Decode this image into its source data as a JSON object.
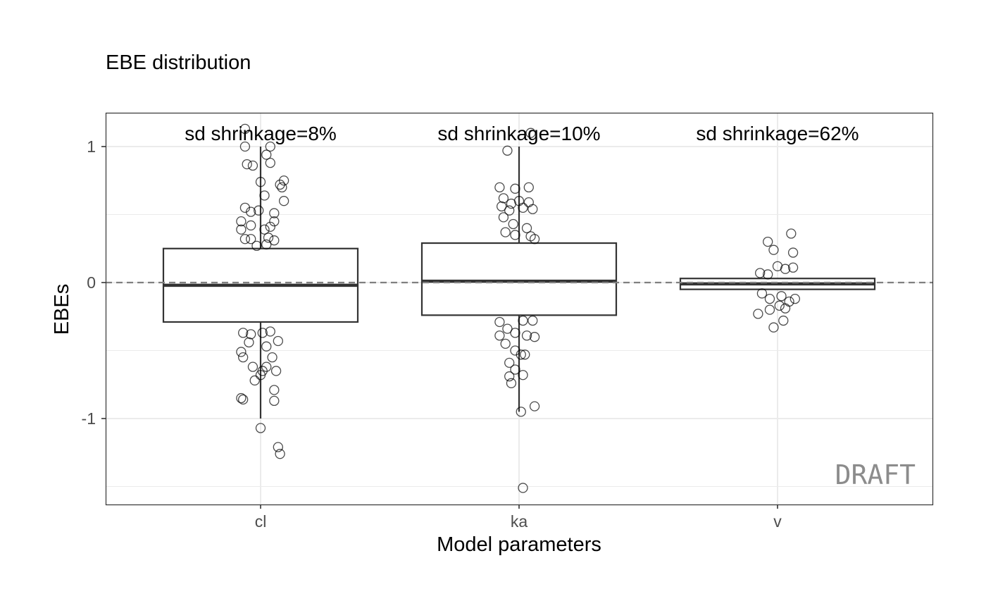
{
  "chart_data": {
    "type": "box",
    "title": "EBE distribution",
    "xlabel": "Model parameters",
    "ylabel": "EBEs",
    "categories": [
      "cl",
      "ka",
      "v"
    ],
    "ylim": [
      -1.62,
      1.25
    ],
    "yticks": [
      -1,
      0,
      1
    ],
    "ytick_labels": [
      "-1",
      "0",
      "1"
    ],
    "grid": true,
    "reference_line": {
      "y": 0,
      "style": "dashed",
      "color": "#808080"
    },
    "watermark": "DRAFT",
    "watermark_color": "#8c8c8c",
    "annotations": [
      "sd shrinkage=8%",
      "sd shrinkage=10%",
      "sd shrinkage=62%"
    ],
    "boxes": [
      {
        "category": "cl",
        "q1": -0.29,
        "median": -0.02,
        "q3": 0.25,
        "whisker_low": -1.0,
        "whisker_high": 1.0
      },
      {
        "category": "ka",
        "q1": -0.24,
        "median": 0.01,
        "q3": 0.29,
        "whisker_low": -0.95,
        "whisker_high": 1.0
      },
      {
        "category": "v",
        "q1": -0.05,
        "median": -0.01,
        "q3": 0.03,
        "whisker_low": -0.05,
        "whisker_high": 0.03
      }
    ],
    "points": [
      {
        "category": "cl",
        "x_offset": -0.08,
        "y": 1.13
      },
      {
        "category": "cl",
        "x_offset": -0.08,
        "y": 1.0
      },
      {
        "category": "cl",
        "x_offset": 0.05,
        "y": 1.0
      },
      {
        "category": "cl",
        "x_offset": 0.03,
        "y": 0.94
      },
      {
        "category": "cl",
        "x_offset": -0.07,
        "y": 0.87
      },
      {
        "category": "cl",
        "x_offset": -0.04,
        "y": 0.86
      },
      {
        "category": "cl",
        "x_offset": 0.05,
        "y": 0.88
      },
      {
        "category": "cl",
        "x_offset": 0.0,
        "y": 0.74
      },
      {
        "category": "cl",
        "x_offset": 0.1,
        "y": 0.72
      },
      {
        "category": "cl",
        "x_offset": 0.11,
        "y": 0.7
      },
      {
        "category": "cl",
        "x_offset": 0.12,
        "y": 0.75
      },
      {
        "category": "cl",
        "x_offset": 0.02,
        "y": 0.64
      },
      {
        "category": "cl",
        "x_offset": 0.12,
        "y": 0.6
      },
      {
        "category": "cl",
        "x_offset": -0.08,
        "y": 0.55
      },
      {
        "category": "cl",
        "x_offset": -0.05,
        "y": 0.52
      },
      {
        "category": "cl",
        "x_offset": -0.01,
        "y": 0.53
      },
      {
        "category": "cl",
        "x_offset": 0.07,
        "y": 0.51
      },
      {
        "category": "cl",
        "x_offset": -0.1,
        "y": 0.45
      },
      {
        "category": "cl",
        "x_offset": -0.05,
        "y": 0.42
      },
      {
        "category": "cl",
        "x_offset": 0.05,
        "y": 0.41
      },
      {
        "category": "cl",
        "x_offset": 0.07,
        "y": 0.45
      },
      {
        "category": "cl",
        "x_offset": -0.1,
        "y": 0.39
      },
      {
        "category": "cl",
        "x_offset": 0.02,
        "y": 0.39
      },
      {
        "category": "cl",
        "x_offset": -0.08,
        "y": 0.32
      },
      {
        "category": "cl",
        "x_offset": -0.05,
        "y": 0.32
      },
      {
        "category": "cl",
        "x_offset": 0.04,
        "y": 0.33
      },
      {
        "category": "cl",
        "x_offset": 0.07,
        "y": 0.31
      },
      {
        "category": "cl",
        "x_offset": -0.02,
        "y": 0.27
      },
      {
        "category": "cl",
        "x_offset": 0.03,
        "y": 0.28
      },
      {
        "category": "cl",
        "x_offset": -0.09,
        "y": -0.37
      },
      {
        "category": "cl",
        "x_offset": -0.05,
        "y": -0.38
      },
      {
        "category": "cl",
        "x_offset": 0.01,
        "y": -0.37
      },
      {
        "category": "cl",
        "x_offset": 0.05,
        "y": -0.36
      },
      {
        "category": "cl",
        "x_offset": -0.06,
        "y": -0.44
      },
      {
        "category": "cl",
        "x_offset": 0.03,
        "y": -0.47
      },
      {
        "category": "cl",
        "x_offset": 0.09,
        "y": -0.43
      },
      {
        "category": "cl",
        "x_offset": -0.1,
        "y": -0.51
      },
      {
        "category": "cl",
        "x_offset": -0.09,
        "y": -0.55
      },
      {
        "category": "cl",
        "x_offset": 0.06,
        "y": -0.55
      },
      {
        "category": "cl",
        "x_offset": -0.04,
        "y": -0.62
      },
      {
        "category": "cl",
        "x_offset": 0.01,
        "y": -0.65
      },
      {
        "category": "cl",
        "x_offset": 0.03,
        "y": -0.62
      },
      {
        "category": "cl",
        "x_offset": 0.08,
        "y": -0.65
      },
      {
        "category": "cl",
        "x_offset": -0.03,
        "y": -0.72
      },
      {
        "category": "cl",
        "x_offset": 0.0,
        "y": -0.68
      },
      {
        "category": "cl",
        "x_offset": 0.07,
        "y": -0.79
      },
      {
        "category": "cl",
        "x_offset": -0.1,
        "y": -0.85
      },
      {
        "category": "cl",
        "x_offset": -0.09,
        "y": -0.86
      },
      {
        "category": "cl",
        "x_offset": 0.07,
        "y": -0.87
      },
      {
        "category": "cl",
        "x_offset": 0.0,
        "y": -1.07
      },
      {
        "category": "cl",
        "x_offset": 0.09,
        "y": -1.21
      },
      {
        "category": "cl",
        "x_offset": 0.1,
        "y": -1.26
      },
      {
        "category": "ka",
        "x_offset": 0.06,
        "y": 1.1
      },
      {
        "category": "ka",
        "x_offset": -0.06,
        "y": 0.97
      },
      {
        "category": "ka",
        "x_offset": -0.1,
        "y": 0.7
      },
      {
        "category": "ka",
        "x_offset": -0.02,
        "y": 0.69
      },
      {
        "category": "ka",
        "x_offset": 0.05,
        "y": 0.7
      },
      {
        "category": "ka",
        "x_offset": -0.08,
        "y": 0.62
      },
      {
        "category": "ka",
        "x_offset": -0.04,
        "y": 0.58
      },
      {
        "category": "ka",
        "x_offset": 0.0,
        "y": 0.6
      },
      {
        "category": "ka",
        "x_offset": 0.05,
        "y": 0.59
      },
      {
        "category": "ka",
        "x_offset": -0.09,
        "y": 0.56
      },
      {
        "category": "ka",
        "x_offset": -0.05,
        "y": 0.53
      },
      {
        "category": "ka",
        "x_offset": 0.02,
        "y": 0.55
      },
      {
        "category": "ka",
        "x_offset": 0.07,
        "y": 0.54
      },
      {
        "category": "ka",
        "x_offset": -0.08,
        "y": 0.48
      },
      {
        "category": "ka",
        "x_offset": -0.03,
        "y": 0.43
      },
      {
        "category": "ka",
        "x_offset": 0.04,
        "y": 0.4
      },
      {
        "category": "ka",
        "x_offset": -0.07,
        "y": 0.37
      },
      {
        "category": "ka",
        "x_offset": -0.02,
        "y": 0.35
      },
      {
        "category": "ka",
        "x_offset": 0.06,
        "y": 0.34
      },
      {
        "category": "ka",
        "x_offset": 0.08,
        "y": 0.32
      },
      {
        "category": "ka",
        "x_offset": -0.1,
        "y": -0.29
      },
      {
        "category": "ka",
        "x_offset": -0.06,
        "y": -0.34
      },
      {
        "category": "ka",
        "x_offset": 0.02,
        "y": -0.28
      },
      {
        "category": "ka",
        "x_offset": 0.07,
        "y": -0.28
      },
      {
        "category": "ka",
        "x_offset": -0.1,
        "y": -0.39
      },
      {
        "category": "ka",
        "x_offset": -0.02,
        "y": -0.37
      },
      {
        "category": "ka",
        "x_offset": 0.04,
        "y": -0.39
      },
      {
        "category": "ka",
        "x_offset": 0.08,
        "y": -0.4
      },
      {
        "category": "ka",
        "x_offset": -0.07,
        "y": -0.45
      },
      {
        "category": "ka",
        "x_offset": -0.02,
        "y": -0.5
      },
      {
        "category": "ka",
        "x_offset": 0.01,
        "y": -0.53
      },
      {
        "category": "ka",
        "x_offset": 0.03,
        "y": -0.53
      },
      {
        "category": "ka",
        "x_offset": -0.05,
        "y": -0.59
      },
      {
        "category": "ka",
        "x_offset": -0.02,
        "y": -0.64
      },
      {
        "category": "ka",
        "x_offset": 0.02,
        "y": -0.68
      },
      {
        "category": "ka",
        "x_offset": -0.05,
        "y": -0.69
      },
      {
        "category": "ka",
        "x_offset": -0.04,
        "y": -0.74
      },
      {
        "category": "ka",
        "x_offset": 0.01,
        "y": -0.95
      },
      {
        "category": "ka",
        "x_offset": 0.08,
        "y": -0.91
      },
      {
        "category": "ka",
        "x_offset": 0.02,
        "y": -1.51
      },
      {
        "category": "v",
        "x_offset": -0.05,
        "y": 0.3
      },
      {
        "category": "v",
        "x_offset": 0.07,
        "y": 0.36
      },
      {
        "category": "v",
        "x_offset": -0.02,
        "y": 0.24
      },
      {
        "category": "v",
        "x_offset": 0.08,
        "y": 0.22
      },
      {
        "category": "v",
        "x_offset": -0.09,
        "y": 0.07
      },
      {
        "category": "v",
        "x_offset": -0.05,
        "y": 0.06
      },
      {
        "category": "v",
        "x_offset": 0.0,
        "y": 0.12
      },
      {
        "category": "v",
        "x_offset": 0.04,
        "y": 0.1
      },
      {
        "category": "v",
        "x_offset": 0.08,
        "y": 0.11
      },
      {
        "category": "v",
        "x_offset": -0.08,
        "y": -0.08
      },
      {
        "category": "v",
        "x_offset": -0.04,
        "y": -0.12
      },
      {
        "category": "v",
        "x_offset": 0.02,
        "y": -0.1
      },
      {
        "category": "v",
        "x_offset": 0.06,
        "y": -0.14
      },
      {
        "category": "v",
        "x_offset": 0.09,
        "y": -0.12
      },
      {
        "category": "v",
        "x_offset": -0.1,
        "y": -0.23
      },
      {
        "category": "v",
        "x_offset": -0.04,
        "y": -0.2
      },
      {
        "category": "v",
        "x_offset": 0.01,
        "y": -0.17
      },
      {
        "category": "v",
        "x_offset": 0.04,
        "y": -0.19
      },
      {
        "category": "v",
        "x_offset": -0.02,
        "y": -0.33
      },
      {
        "category": "v",
        "x_offset": 0.03,
        "y": -0.28
      }
    ]
  }
}
